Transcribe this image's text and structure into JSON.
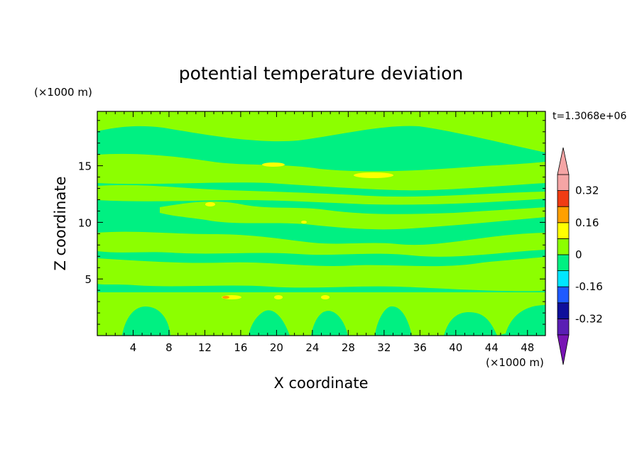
{
  "chart_data": {
    "type": "heatmap",
    "title": "potential temperature deviation",
    "xlabel": "X coordinate",
    "ylabel": "Z coordinate",
    "x_unit": "(×1000 m)",
    "y_unit": "(×1000 m)",
    "time_label": "t=1.3068e+06",
    "xlim": [
      0,
      50
    ],
    "ylim": [
      0,
      19.8
    ],
    "x_ticks": [
      4,
      8,
      12,
      16,
      20,
      24,
      28,
      32,
      36,
      40,
      44,
      48
    ],
    "y_ticks": [
      5,
      10,
      15
    ],
    "x_tick_labels": [
      "4",
      "8",
      "12",
      "16",
      "20",
      "24",
      "28",
      "32",
      "36",
      "40",
      "44",
      "48"
    ],
    "y_tick_labels": [
      "5",
      "10",
      "15"
    ],
    "grid": false,
    "colorbar": {
      "position": "right",
      "levels": [
        -0.4,
        -0.32,
        -0.24,
        -0.16,
        -0.08,
        0,
        0.08,
        0.16,
        0.24,
        0.32,
        0.4
      ],
      "labels": [
        "0.32",
        "0.16",
        "0",
        "-0.16",
        "-0.32"
      ],
      "label_values": [
        0.32,
        0.16,
        0,
        -0.16,
        -0.32
      ],
      "colors": [
        "#5a1eb4",
        "#0f0f9b",
        "#1e5aff",
        "#00e6ff",
        "#00f082",
        "#8cff00",
        "#ffff00",
        "#ffa000",
        "#f03c14",
        "#f5a5a5"
      ],
      "under_color": "#7814b4",
      "over_color": "#f5a5a5"
    }
  }
}
